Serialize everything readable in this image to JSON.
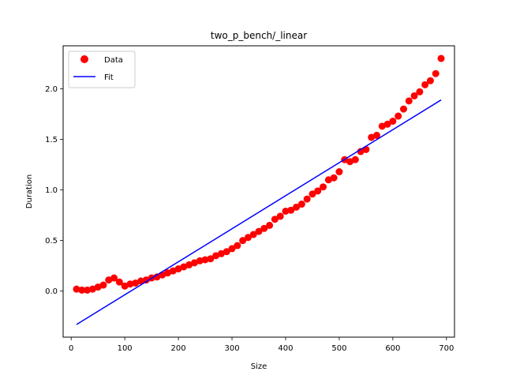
{
  "chart_data": {
    "type": "scatter",
    "title": "two_p_bench/_linear",
    "xlabel": "Size",
    "ylabel": "Duration",
    "xlim": [
      -15,
      715
    ],
    "ylim": [
      -0.455,
      2.425
    ],
    "xticks": [
      0,
      100,
      200,
      300,
      400,
      500,
      600,
      700
    ],
    "yticks": [
      0.0,
      0.5,
      1.0,
      1.5,
      2.0
    ],
    "ytick_labels": [
      "0.0",
      "0.5",
      "1.0",
      "1.5",
      "2.0"
    ],
    "grid": false,
    "legend_position": "top-left",
    "series": [
      {
        "name": "Data",
        "kind": "scatter",
        "color": "#ff0000",
        "x": [
          10,
          20,
          30,
          40,
          50,
          60,
          70,
          80,
          90,
          100,
          110,
          120,
          130,
          140,
          150,
          160,
          170,
          180,
          190,
          200,
          210,
          220,
          230,
          240,
          250,
          260,
          270,
          280,
          290,
          300,
          310,
          320,
          330,
          340,
          350,
          360,
          370,
          380,
          390,
          400,
          410,
          420,
          430,
          440,
          450,
          460,
          470,
          480,
          490,
          500,
          510,
          520,
          530,
          540,
          550,
          560,
          570,
          580,
          590,
          600,
          610,
          620,
          630,
          640,
          650,
          660,
          670,
          680,
          690
        ],
        "y": [
          0.02,
          0.01,
          0.01,
          0.02,
          0.04,
          0.06,
          0.11,
          0.13,
          0.09,
          0.05,
          0.07,
          0.08,
          0.1,
          0.11,
          0.13,
          0.14,
          0.16,
          0.18,
          0.2,
          0.22,
          0.24,
          0.26,
          0.28,
          0.3,
          0.31,
          0.32,
          0.35,
          0.37,
          0.39,
          0.42,
          0.45,
          0.5,
          0.53,
          0.56,
          0.59,
          0.62,
          0.65,
          0.71,
          0.74,
          0.79,
          0.8,
          0.83,
          0.86,
          0.91,
          0.96,
          0.99,
          1.03,
          1.1,
          1.12,
          1.18,
          1.3,
          1.28,
          1.3,
          1.38,
          1.4,
          1.52,
          1.54,
          1.63,
          1.65,
          1.68,
          1.73,
          1.8,
          1.88,
          1.93,
          1.97,
          2.04,
          2.08,
          2.15,
          2.3
        ]
      },
      {
        "name": "Fit",
        "kind": "line",
        "color": "#0000ff",
        "x": [
          10,
          690
        ],
        "y": [
          -0.33,
          1.89
        ]
      }
    ]
  }
}
